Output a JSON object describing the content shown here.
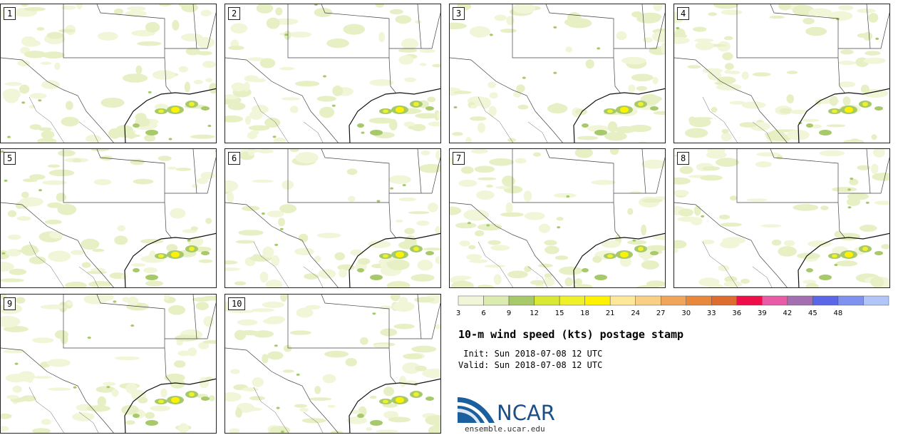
{
  "members": [
    "1",
    "2",
    "3",
    "4",
    "5",
    "6",
    "7",
    "8",
    "9",
    "10"
  ],
  "colorbar": {
    "levels": [
      "3",
      "6",
      "9",
      "12",
      "15",
      "18",
      "21",
      "24",
      "27",
      "30",
      "33",
      "36",
      "39",
      "42",
      "45",
      "48"
    ],
    "colors": [
      "#f1f6d8",
      "#dcebb0",
      "#a8c96a",
      "#d8e834",
      "#eef02a",
      "#fff200",
      "#fde89a",
      "#f9cf85",
      "#f0a65a",
      "#e8883d",
      "#de6c2e",
      "#ee0e4a",
      "#e85ba6",
      "#a46fb0",
      "#5b67e8",
      "#7f92f0",
      "#b1c5f8"
    ]
  },
  "title": "10-m wind speed (kts) postage stamp",
  "init_line": " Init: Sun 2018-07-08 12 UTC",
  "valid_line": "Valid: Sun 2018-07-08 12 UTC",
  "logo": {
    "name": "NCAR",
    "url": "ensemble.ucar.edu"
  }
}
